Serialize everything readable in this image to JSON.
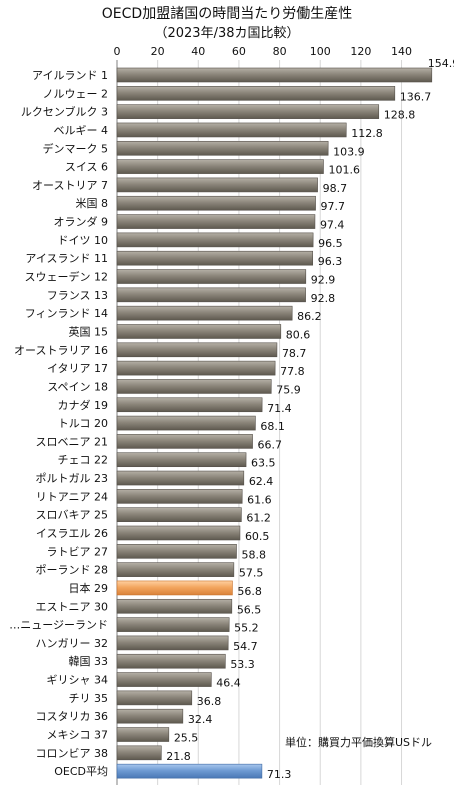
{
  "chart_data": {
    "type": "bar",
    "orientation": "horizontal",
    "title": "OECD加盟諸国の時間当たり労働生産性",
    "subtitle": "（2023年/38カ国比較）",
    "unit_note": "単位：購買力平価換算USドル",
    "xlim": [
      0,
      155
    ],
    "x_ticks": [
      0,
      20,
      40,
      60,
      80,
      100,
      120,
      140
    ],
    "grid": true,
    "categories": [
      "アイルランド 1",
      "ノルウェー 2",
      "ルクセンブルク 3",
      "ベルギー 4",
      "デンマーク 5",
      "スイス 6",
      "オーストリア 7",
      "米国 8",
      "オランダ 9",
      "ドイツ 10",
      "アイスランド 11",
      "スウェーデン 12",
      "フランス 13",
      "フィンランド 14",
      "英国 15",
      "オーストラリア 16",
      "イタリア 17",
      "スペイン 18",
      "カナダ 19",
      "トルコ 20",
      "スロベニア 21",
      "チェコ 22",
      "ポルトガル 23",
      "リトアニア 24",
      "スロバキア 25",
      "イスラエル 26",
      "ラトビア 27",
      "ポーランド 28",
      "日本 29",
      "エストニア 30",
      "…ニュージーランド",
      "ハンガリー 32",
      "韓国 33",
      "ギリシャ 34",
      "チリ 35",
      "コスタリカ 36",
      "メキシコ 37",
      "コロンビア 38",
      "OECD平均"
    ],
    "values": [
      154.9,
      136.7,
      128.8,
      112.8,
      103.9,
      101.6,
      98.7,
      97.7,
      97.4,
      96.5,
      96.3,
      92.9,
      92.8,
      86.2,
      80.6,
      78.7,
      77.8,
      75.9,
      71.4,
      68.1,
      66.7,
      63.5,
      62.4,
      61.6,
      61.2,
      60.5,
      58.8,
      57.5,
      56.8,
      56.5,
      55.2,
      54.7,
      53.3,
      46.4,
      36.8,
      32.4,
      25.5,
      21.8,
      71.3
    ],
    "value_labels": [
      "154.9",
      "136.7",
      "128.8",
      "112.8",
      "103.9",
      "101.6",
      "98.7",
      "97.7",
      "97.4",
      "96.5",
      "96.3",
      "92.9",
      "92.8",
      "86.2",
      "80.6",
      "78.7",
      "77.8",
      "75.9",
      "71.4",
      "68.1",
      "66.7",
      "63.5",
      "62.4",
      "61.6",
      "61.2",
      "60.5",
      "58.8",
      "57.5",
      "56.8",
      "56.5",
      "55.2",
      "54.7",
      "53.3",
      "46.4",
      "36.8",
      "32.4",
      "25.5",
      "21.8",
      "71.3"
    ],
    "highlights": {
      "日本 29": "orange",
      "OECD平均": "blue"
    },
    "colors": {
      "default_bar": "#8c867b",
      "japan_bar": "#f3a65f",
      "average_bar": "#6f9bd3"
    }
  }
}
